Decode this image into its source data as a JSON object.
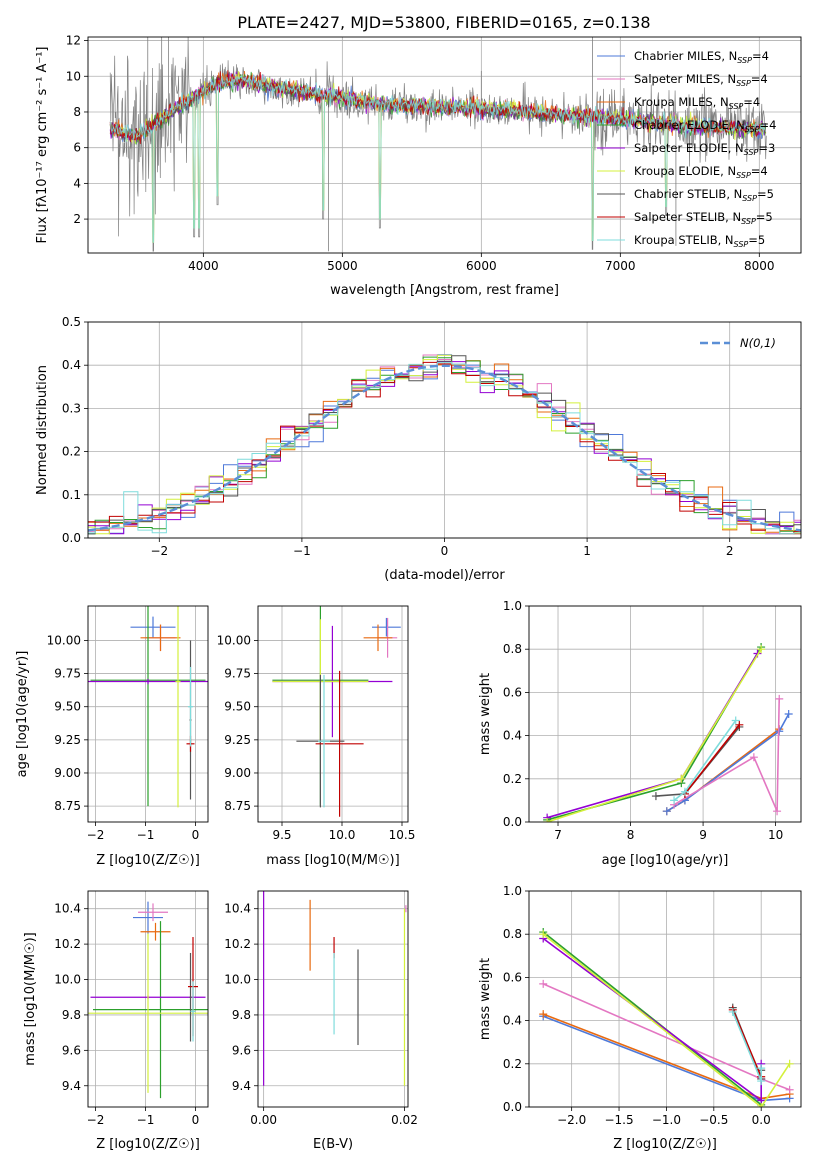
{
  "chart_data": [
    {
      "panel": "spectrum",
      "type": "line",
      "title": "PLATE=2427, MJD=53800, FIBERID=0165, z=0.138",
      "xlabel": "wavelength [Angstrom, rest frame]",
      "ylabel": "Flux [fλ10⁻¹⁷ erg cm⁻² s⁻¹ A⁻¹]",
      "xlim": [
        3170,
        8300
      ],
      "ylim": [
        0.1,
        12.2
      ],
      "xticks": [
        "4000",
        "5000",
        "6000",
        "7000",
        "8000"
      ],
      "yticks": [
        "2",
        "4",
        "6",
        "8",
        "10",
        "12"
      ],
      "legend_position": "upper right",
      "legend": [
        {
          "name": "Chabrier MILES, N_SSP=4",
          "text": "Chabrier MILES, N",
          "sub": "SSP",
          "tail": "=4",
          "color": "#4e79d9"
        },
        {
          "name": "Salpeter MILES, N_SSP=4",
          "text": "Salpeter MILES, N",
          "sub": "SSP",
          "tail": "=4",
          "color": "#e377c2"
        },
        {
          "name": "Kroupa MILES, N_SSP=4",
          "text": "Kroupa MILES, N",
          "sub": "SSP",
          "tail": "=4",
          "color": "#e86a10"
        },
        {
          "name": "Chabrier ELODIE, N_SSP=4",
          "text": "Chabrier ELODIE, N",
          "sub": "SSP",
          "tail": "=4",
          "color": "#2ca02c"
        },
        {
          "name": "Salpeter ELODIE, N_SSP=3",
          "text": "Salpeter ELODIE, N",
          "sub": "SSP",
          "tail": "=3",
          "color": "#9400d3"
        },
        {
          "name": "Kroupa ELODIE, N_SSP=4",
          "text": "Kroupa ELODIE, N",
          "sub": "SSP",
          "tail": "=4",
          "color": "#d4f03c"
        },
        {
          "name": "Chabrier STELIB, N_SSP=5",
          "text": "Chabrier STELIB, N",
          "sub": "SSP",
          "tail": "=5",
          "color": "#555555"
        },
        {
          "name": "Salpeter STELIB, N_SSP=5",
          "text": "Salpeter STELIB, N",
          "sub": "SSP",
          "tail": "=5",
          "color": "#c00000"
        },
        {
          "name": "Kroupa STELIB, N_SSP=5",
          "text": "Kroupa STELIB, N",
          "sub": "SSP",
          "tail": "=5",
          "color": "#7fdcdc"
        }
      ],
      "data_color": "#808080",
      "continuum": [
        [
          3330,
          7.1
        ],
        [
          3500,
          6.6
        ],
        [
          3700,
          7.6
        ],
        [
          3900,
          8.7
        ],
        [
          4100,
          9.6
        ],
        [
          4300,
          9.8
        ],
        [
          4500,
          9.4
        ],
        [
          4800,
          9.0
        ],
        [
          5000,
          8.8
        ],
        [
          5300,
          8.4
        ],
        [
          5600,
          8.3
        ],
        [
          6000,
          8.2
        ],
        [
          6500,
          7.9
        ],
        [
          7000,
          7.6
        ],
        [
          7500,
          7.2
        ],
        [
          8000,
          7.0
        ],
        [
          8050,
          7.0
        ]
      ],
      "absorption_features": [
        [
          3640,
          0.2
        ],
        [
          3934,
          1.0
        ],
        [
          3969,
          1.0
        ],
        [
          4101,
          2.8
        ],
        [
          4861,
          2.0
        ],
        [
          5270,
          1.5
        ],
        [
          6800,
          0.3
        ],
        [
          7330,
          2.2
        ]
      ],
      "noise_spikes": [
        [
          3600,
          12.2
        ],
        [
          3700,
          12.2
        ],
        [
          3750,
          12.2
        ],
        [
          4900,
          0.2
        ],
        [
          6000,
          10.3
        ],
        [
          6800,
          12.2
        ],
        [
          7400,
          0.5
        ]
      ]
    },
    {
      "panel": "residuals",
      "type": "line",
      "xlabel": "(data-model)/error",
      "ylabel": "Normed distribution",
      "xlim": [
        -2.5,
        2.5
      ],
      "ylim": [
        0,
        0.5
      ],
      "xticks": [
        "−2",
        "−1",
        "0",
        "1",
        "2"
      ],
      "yticks": [
        "0.0",
        "0.1",
        "0.2",
        "0.3",
        "0.4",
        "0.5"
      ],
      "reference_curve_label": "N(0,1)",
      "reference_curve_color": "#5b8fd6",
      "bin_width": 0.1
    },
    {
      "panel": "age-vs-Z",
      "type": "errorbar",
      "xlabel": "Z [log10(Z/Z☉)]",
      "ylabel": "age  [log10(age/yr)]",
      "xlim": [
        -2.15,
        0.25
      ],
      "ylim": [
        8.63,
        10.26
      ],
      "xticks": [
        "−2",
        "−1",
        "0"
      ],
      "yticks": [
        "8.75",
        "9.00",
        "9.25",
        "9.50",
        "9.75",
        "10.00"
      ],
      "points": [
        {
          "x": -0.85,
          "y": 10.1,
          "xerr": 0.45,
          "yerr": 0.08,
          "color": "#4e79d9"
        },
        {
          "x": -0.7,
          "y": 10.02,
          "xerr": 0.3,
          "yerr": 0.1,
          "color": "#e377c2"
        },
        {
          "x": -0.7,
          "y": 10.02,
          "xerr": 0.4,
          "yerr": 0.1,
          "color": "#e86a10"
        },
        {
          "x": -0.95,
          "y": 9.7,
          "xerr": 1.15,
          "yerr": 0.95,
          "color": "#2ca02c"
        },
        {
          "x": -0.95,
          "y": 9.69,
          "xerr": 1.2,
          "yerr": 0.02,
          "color": "#9400d3"
        },
        {
          "x": -0.35,
          "y": 9.69,
          "xerr": 0.05,
          "yerr": 0.95,
          "color": "#d4f03c"
        },
        {
          "x": -0.1,
          "y": 9.4,
          "xerr": 0.02,
          "yerr": 0.6,
          "color": "#555555"
        },
        {
          "x": -0.1,
          "y": 9.22,
          "xerr": 0.08,
          "yerr": 0.06,
          "color": "#c00000"
        },
        {
          "x": -0.1,
          "y": 9.5,
          "xerr": 0.05,
          "yerr": 0.3,
          "color": "#7fdcdc"
        }
      ]
    },
    {
      "panel": "age-vs-mass",
      "type": "errorbar",
      "xlabel": "mass [log10(M/M☉)]",
      "ylabel": "",
      "xlim": [
        9.3,
        10.55
      ],
      "ylim": [
        8.63,
        10.26
      ],
      "xticks": [
        "9.5",
        "10.0",
        "10.5"
      ],
      "yticks": [
        "8.75",
        "9.00",
        "9.25",
        "9.50",
        "9.75",
        "10.00"
      ],
      "points": [
        {
          "x": 10.37,
          "y": 10.1,
          "xerr": 0.12,
          "yerr": 0.07,
          "color": "#4e79d9"
        },
        {
          "x": 10.38,
          "y": 10.02,
          "xerr": 0.08,
          "yerr": 0.15,
          "color": "#e377c2"
        },
        {
          "x": 10.3,
          "y": 10.02,
          "xerr": 0.12,
          "yerr": 0.1,
          "color": "#e86a10"
        },
        {
          "x": 9.82,
          "y": 9.7,
          "xerr": 0.4,
          "yerr": 0.95,
          "color": "#2ca02c"
        },
        {
          "x": 9.92,
          "y": 9.69,
          "xerr": 0.5,
          "yerr": 0.42,
          "color": "#9400d3"
        },
        {
          "x": 9.82,
          "y": 9.69,
          "xerr": 0.4,
          "yerr": 0.47,
          "color": "#d4f03c"
        },
        {
          "x": 9.82,
          "y": 9.24,
          "xerr": 0.2,
          "yerr": 0.5,
          "color": "#555555"
        },
        {
          "x": 9.98,
          "y": 9.22,
          "xerr": 0.2,
          "yerr": 0.55,
          "color": "#c00000"
        },
        {
          "x": 9.85,
          "y": 9.24,
          "xerr": 0.05,
          "yerr": 0.5,
          "color": "#7fdcdc"
        }
      ]
    },
    {
      "panel": "mass-weight-vs-age",
      "type": "line",
      "xlabel": "age  [log10(age/yr)]",
      "ylabel": "mass weight",
      "xlim": [
        6.6,
        10.35
      ],
      "ylim": [
        0,
        1
      ],
      "xticks": [
        "7",
        "8",
        "9",
        "10"
      ],
      "yticks": [
        "0.0",
        "0.2",
        "0.4",
        "0.6",
        "0.8",
        "1.0"
      ],
      "series": [
        {
          "color": "#e86a10",
          "x": [
            8.5,
            8.75,
            10.05
          ],
          "y": [
            0.05,
            0.1,
            0.43
          ]
        },
        {
          "color": "#4e79d9",
          "x": [
            8.5,
            8.75,
            10.05,
            10.18
          ],
          "y": [
            0.05,
            0.1,
            0.42,
            0.5
          ]
        },
        {
          "color": "#e377c2",
          "x": [
            8.6,
            9.7,
            10.02,
            10.05
          ],
          "y": [
            0.08,
            0.3,
            0.05,
            0.57
          ]
        },
        {
          "color": "#2ca02c",
          "x": [
            6.85,
            8.7,
            9.8
          ],
          "y": [
            0.01,
            0.18,
            0.81
          ]
        },
        {
          "color": "#9400d3",
          "x": [
            6.85,
            8.7,
            9.75
          ],
          "y": [
            0.02,
            0.2,
            0.78
          ]
        },
        {
          "color": "#d4f03c",
          "x": [
            6.85,
            8.7,
            9.8
          ],
          "y": [
            0.0,
            0.2,
            0.8
          ]
        },
        {
          "color": "#555555",
          "x": [
            8.35,
            8.75,
            9.5
          ],
          "y": [
            0.12,
            0.13,
            0.44
          ]
        },
        {
          "color": "#c00000",
          "x": [
            8.75,
            9.5
          ],
          "y": [
            0.13,
            0.45
          ]
        },
        {
          "color": "#7fdcdc",
          "x": [
            8.6,
            8.75,
            9.45
          ],
          "y": [
            0.1,
            0.14,
            0.47
          ]
        }
      ]
    },
    {
      "panel": "mass-vs-Z",
      "type": "errorbar",
      "xlabel": "Z [log10(Z/Z☉)]",
      "ylabel": "mass [log10(M/M☉)]",
      "xlim": [
        -2.15,
        0.25
      ],
      "ylim": [
        9.28,
        10.5
      ],
      "xticks": [
        "−2",
        "−1",
        "0"
      ],
      "yticks": [
        "9.4",
        "9.6",
        "9.8",
        "10.0",
        "10.2",
        "10.4"
      ],
      "points": [
        {
          "x": -0.95,
          "y": 10.35,
          "xerr": 0.3,
          "yerr": 0.09,
          "color": "#4e79d9"
        },
        {
          "x": -0.85,
          "y": 10.38,
          "xerr": 0.3,
          "yerr": 0.05,
          "color": "#e377c2"
        },
        {
          "x": -0.8,
          "y": 10.27,
          "xerr": 0.3,
          "yerr": 0.05,
          "color": "#e86a10"
        },
        {
          "x": -0.7,
          "y": 9.83,
          "xerr": 1.35,
          "yerr": 0.5,
          "color": "#2ca02c"
        },
        {
          "x": -0.95,
          "y": 9.9,
          "xerr": 1.15,
          "yerr": 0.01,
          "color": "#9400d3"
        },
        {
          "x": -0.95,
          "y": 9.81,
          "xerr": 1.2,
          "yerr": 0.45,
          "color": "#d4f03c"
        },
        {
          "x": -0.1,
          "y": 9.9,
          "xerr": 0.02,
          "yerr": 0.25,
          "color": "#555555"
        },
        {
          "x": -0.05,
          "y": 9.96,
          "xerr": 0.1,
          "yerr": 0.28,
          "color": "#c00000"
        },
        {
          "x": -0.05,
          "y": 9.82,
          "xerr": 0.05,
          "yerr": 0.17,
          "color": "#7fdcdc"
        }
      ]
    },
    {
      "panel": "mass-vs-EBV",
      "type": "errorbar",
      "xlabel": "E(B-V)",
      "ylabel": "",
      "xlim": [
        -0.0008,
        0.0205
      ],
      "ylim": [
        9.28,
        10.5
      ],
      "xticks": [
        "0.00",
        "0.02"
      ],
      "yticks": [
        "9.4",
        "9.6",
        "9.8",
        "10.0",
        "10.2",
        "10.4"
      ],
      "points": [
        {
          "x": 0.0,
          "y": 9.95,
          "yerr": 0.55,
          "color": "#9400d3"
        },
        {
          "x": 0.0066,
          "y": 10.25,
          "yerr": 0.2,
          "color": "#e86a10"
        },
        {
          "x": 0.01,
          "y": 10.18,
          "yerr": 0.06,
          "color": "#c00000"
        },
        {
          "x": 0.01,
          "y": 9.92,
          "yerr": 0.23,
          "color": "#7fdcdc"
        },
        {
          "x": 0.0134,
          "y": 9.9,
          "yerr": 0.27,
          "color": "#555555"
        },
        {
          "x": 0.02,
          "y": 9.9,
          "yerr": 0.5,
          "color": "#d4f03c"
        },
        {
          "x": 0.0202,
          "y": 10.4,
          "yerr": 0.02,
          "color": "#e377c2"
        }
      ]
    },
    {
      "panel": "mass-weight-vs-Z",
      "type": "line",
      "xlabel": "Z [log10(Z/Z☉)]",
      "ylabel": "mass weight",
      "xlim": [
        -2.45,
        0.42
      ],
      "ylim": [
        0,
        1
      ],
      "xticks": [
        "−2.0",
        "−1.5",
        "−1.0",
        "−0.5",
        "0.0"
      ],
      "yticks": [
        "0.0",
        "0.2",
        "0.4",
        "0.6",
        "0.8",
        "1.0"
      ],
      "series": [
        {
          "color": "#4e79d9",
          "x": [
            -2.3,
            0.0,
            0.3
          ],
          "y": [
            0.42,
            0.03,
            0.04
          ]
        },
        {
          "color": "#e86a10",
          "x": [
            -2.3,
            0.0,
            0.3
          ],
          "y": [
            0.43,
            0.04,
            0.06
          ]
        },
        {
          "color": "#e377c2",
          "x": [
            -2.3,
            0.0,
            0.3
          ],
          "y": [
            0.57,
            0.13,
            0.08
          ]
        },
        {
          "color": "#2ca02c",
          "x": [
            -2.3,
            0.0
          ],
          "y": [
            0.81,
            0.01
          ]
        },
        {
          "color": "#9400d3",
          "x": [
            -2.3,
            0.0,
            0.0
          ],
          "y": [
            0.78,
            0.03,
            0.2
          ]
        },
        {
          "color": "#d4f03c",
          "x": [
            -2.3,
            0.0,
            0.3
          ],
          "y": [
            0.8,
            0.0,
            0.2
          ]
        },
        {
          "color": "#555555",
          "x": [
            -0.3,
            0.0,
            0.0
          ],
          "y": [
            0.46,
            0.13,
            0.17
          ]
        },
        {
          "color": "#c00000",
          "x": [
            -0.3,
            0.0
          ],
          "y": [
            0.45,
            0.14
          ]
        },
        {
          "color": "#7fdcdc",
          "x": [
            -0.3,
            0.0,
            0.0
          ],
          "y": [
            0.44,
            0.12,
            0.18
          ]
        }
      ]
    }
  ]
}
